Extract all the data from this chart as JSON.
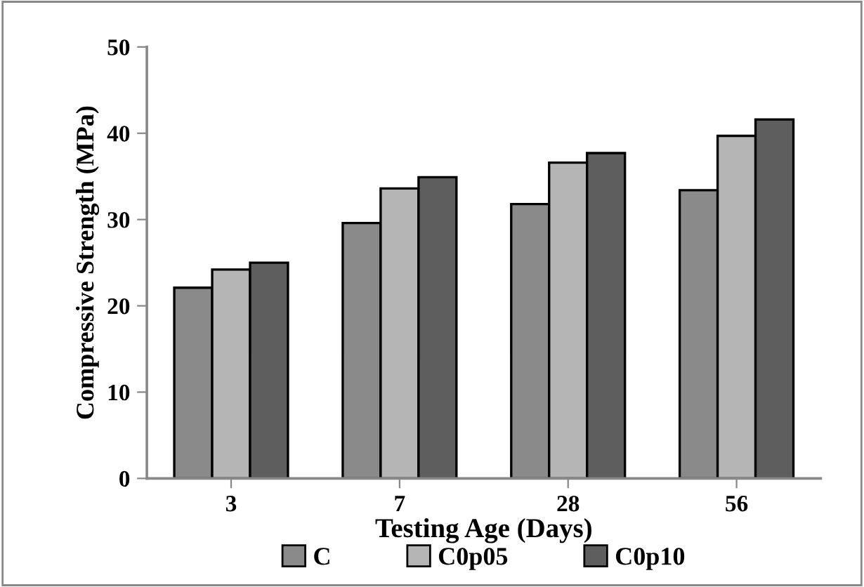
{
  "chart_data": {
    "type": "bar",
    "xlabel": "Testing Age (Days)",
    "ylabel": "Compressive Strength (MPa)",
    "categories": [
      "3",
      "7",
      "28",
      "56"
    ],
    "series": [
      {
        "name": "C",
        "color": "#8a8a8a",
        "values": [
          22.1,
          29.6,
          31.8,
          33.4
        ]
      },
      {
        "name": "C0p05",
        "color": "#b5b5b5",
        "values": [
          24.2,
          33.6,
          36.6,
          39.7
        ]
      },
      {
        "name": "C0p10",
        "color": "#5e5e5e",
        "values": [
          25.0,
          34.9,
          37.7,
          41.6
        ]
      }
    ],
    "ylim": [
      0,
      50
    ],
    "yticks": [
      0,
      10,
      20,
      30,
      40,
      50
    ],
    "grid": false,
    "legend": "bottom"
  }
}
